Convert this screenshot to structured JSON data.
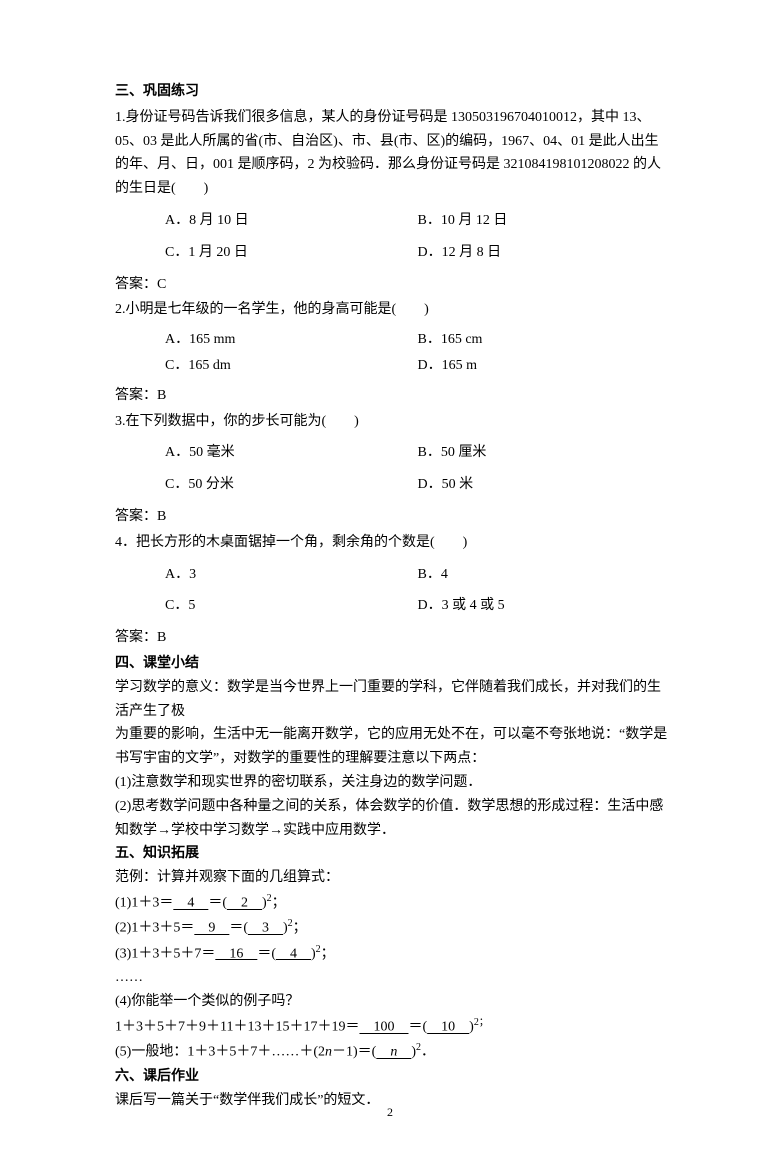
{
  "s3": {
    "title": "三、巩固练习",
    "q1": {
      "stem": "1.身份证号码告诉我们很多信息，某人的身份证号码是 130503196704010012，其中 13、05、03 是此人所属的省(市、自治区)、市、县(市、区)的编码，1967、04、01 是此人出生的年、月、日，001 是顺序码，2 为校验码．那么身份证号码是 321084198101208022 的人的生日是(　　)",
      "A": "A．8 月 10 日",
      "B": "B．10 月 12 日",
      "C": "C．1 月 20 日",
      "D": "D．12 月 8 日",
      "ans": "答案：C"
    },
    "q2": {
      "stem": "2.小明是七年级的一名学生，他的身高可能是(　　)",
      "A": "A．165 mm",
      "B": "B．165 cm",
      "C": "C．165 dm",
      "D": "D．165 m",
      "ans": "答案：B"
    },
    "q3": {
      "stem": "3.在下列数据中，你的步长可能为(　　)",
      "A": "A．50 毫米",
      "B": "B．50 厘米",
      "C": "C．50 分米",
      "D": "D．50 米",
      "ans": "答案：B"
    },
    "q4": {
      "stem": "4．把长方形的木桌面锯掉一个角，剩余角的个数是(　　)",
      "A": "A．3",
      "B": "B．4",
      "C": "C．5",
      "D": "D．3 或 4 或 5",
      "ans": "答案：B"
    }
  },
  "s4": {
    "title": "四、课堂小结",
    "p1": "学习数学的意义：数学是当今世界上一门重要的学科，它伴随着我们成长，并对我们的生活产生了极",
    "p2": "为重要的影响，生活中无一能离开数学，它的应用无处不在，可以毫不夸张地说：“数学是书写宇宙的文学”，对数学的重要性的理解要注意以下两点：",
    "p3": "(1)注意数学和现实世界的密切联系，关注身边的数学问题．",
    "p4": "(2)思考数学问题中各种量之间的关系，体会数学的价值．数学思想的形成过程：生活中感知数学→学校中学习数学→实践中应用数学．"
  },
  "s5": {
    "title": "五、知识拓展",
    "intro": "范例：计算并观察下面的几组算式：",
    "l1_a": "(1)1＋3＝",
    "l1_u1": "　4　",
    "l1_b": "＝(",
    "l1_u2": "　2　",
    "l1_c": ")",
    "l1_exp": "2",
    "l1_d": "；",
    "l2_a": "(2)1＋3＋5＝",
    "l2_u1": "　9　",
    "l2_b": "＝(",
    "l2_u2": "　3　",
    "l2_c": ")",
    "l2_exp": "2",
    "l2_d": "；",
    "l3_a": "(3)1＋3＋5＋7＝",
    "l3_u1": "　16　",
    "l3_b": "＝(",
    "l3_u2": "　4　",
    "l3_c": ")",
    "l3_exp": "2",
    "l3_d": "；",
    "dots": "……",
    "l4": "(4)你能举一个类似的例子吗？",
    "l5_a": "1＋3＋5＋7＋9＋11＋13＋15＋17＋19＝",
    "l5_u1": "　100　",
    "l5_b": "＝(",
    "l5_u2": "　10　",
    "l5_c": ")",
    "l5_exp": "2；",
    "l6_a": "(5)一般地：1＋3＋5＋7＋……＋(2",
    "l6_n": "n",
    "l6_b": "－1)＝(",
    "l6_un": "　n　",
    "l6_c": ")",
    "l6_exp": "2",
    "l6_d": "．"
  },
  "s6": {
    "title": "六、课后作业",
    "p": "课后写一篇关于“数学伴我们成长”的短文．"
  },
  "page_number": "2"
}
